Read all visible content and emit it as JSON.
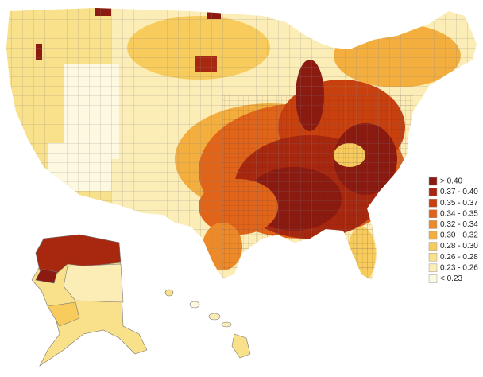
{
  "legend": {
    "items": [
      {
        "label": "> 0.40",
        "color": "#8b1a10"
      },
      {
        "label": "0.37 - 0.40",
        "color": "#a8280f"
      },
      {
        "label": "0.35 - 0.37",
        "color": "#c9400f"
      },
      {
        "label": "0.34 - 0.35",
        "color": "#e0641a"
      },
      {
        "label": "0.32 - 0.34",
        "color": "#ec8a2a"
      },
      {
        "label": "0.30 - 0.32",
        "color": "#f3ae3d"
      },
      {
        "label": "0.28 - 0.30",
        "color": "#f7cc5c"
      },
      {
        "label": "0.26 - 0.28",
        "color": "#f9e08a"
      },
      {
        "label": "0.23 - 0.26",
        "color": "#fbedb5"
      },
      {
        "label": "< 0.23",
        "color": "#fdf8e0"
      }
    ]
  }
}
